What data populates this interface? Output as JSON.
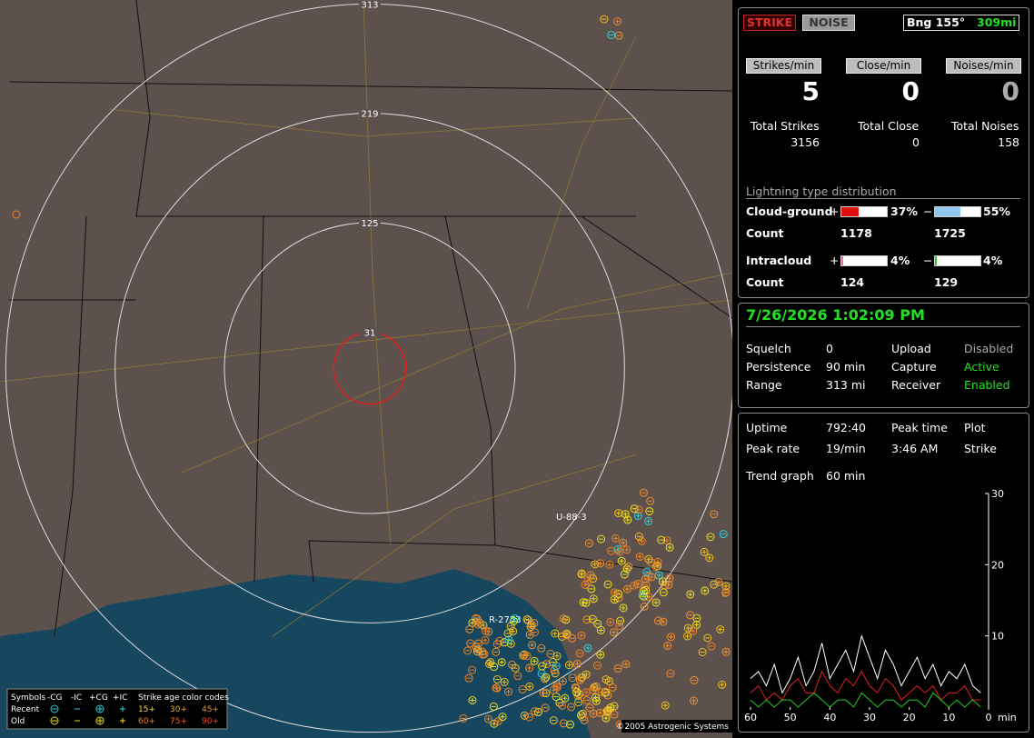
{
  "map": {
    "range_rings": [
      313,
      219,
      125,
      31
    ],
    "airspace_labels": [
      "U-88-3",
      "R-2753"
    ],
    "legend": {
      "symbols": "Symbols",
      "types": [
        "-CG",
        "-IC",
        "+CG",
        "+IC"
      ],
      "age_title": "Strike age color codes",
      "recent": "Recent",
      "old": "Old",
      "recent_ages": [
        "15+",
        "30+",
        "45+"
      ],
      "old_ages": [
        "60+",
        "75+",
        "90+"
      ]
    },
    "copyright": "©2005 Astrogenic Systems"
  },
  "header": {
    "strike": "STRIKE",
    "noise": "NOISE",
    "bearing": "Bng 155°",
    "distance": "309mi"
  },
  "rates": {
    "labels": [
      "Strikes/min",
      "Close/min",
      "Noises/min"
    ],
    "values": [
      5,
      0,
      0
    ]
  },
  "totals": {
    "labels": [
      "Total Strikes",
      "Total Close",
      "Total Noises"
    ],
    "values": [
      3156,
      0,
      158
    ]
  },
  "distribution": {
    "title": "Lightning type distribution",
    "count_label": "Count",
    "plus": "+",
    "minus": "−",
    "cloud_ground": {
      "name": "Cloud-ground",
      "plus": {
        "value": 37,
        "label": "37%"
      },
      "minus": {
        "value": 55,
        "label": "55%"
      },
      "counts": [
        1178,
        1725
      ]
    },
    "intracloud": {
      "name": "Intracloud",
      "plus": {
        "value": 4,
        "label": "4%"
      },
      "minus": {
        "value": 4,
        "label": "4%"
      },
      "counts": [
        124,
        129
      ]
    }
  },
  "status": {
    "datetime": "7/26/2026 1:02:09 PM",
    "rows": [
      [
        "Squelch",
        "0",
        "Upload",
        "Disabled"
      ],
      [
        "Persistence",
        "90 min",
        "Capture",
        "Active"
      ],
      [
        "Range",
        "313 mi",
        "Receiver",
        "Enabled"
      ]
    ]
  },
  "stats": {
    "rows": [
      [
        "Uptime",
        "792:40",
        "Peak time",
        "Plot"
      ],
      [
        "Peak rate",
        "19/min",
        "3:46 AM",
        "Strike"
      ]
    ],
    "trend_label": "Trend graph",
    "trend_value": "60 min"
  },
  "trend_graph": {
    "type": "line",
    "x_label": "min",
    "xlim": [
      60,
      0
    ],
    "ylim": [
      0,
      30
    ],
    "xticks": [
      60,
      50,
      40,
      30,
      20,
      10,
      0
    ],
    "yticks": [
      10,
      20,
      30
    ],
    "x": [
      60,
      58,
      56,
      54,
      52,
      50,
      48,
      46,
      44,
      42,
      40,
      38,
      36,
      34,
      32,
      30,
      28,
      26,
      24,
      22,
      20,
      18,
      16,
      14,
      12,
      10,
      8,
      6,
      4,
      2
    ],
    "series": [
      {
        "color": "#ffffff",
        "values": [
          4,
          5,
          3,
          6,
          2,
          4,
          7,
          3,
          5,
          9,
          4,
          6,
          8,
          5,
          10,
          7,
          4,
          8,
          6,
          3,
          5,
          7,
          4,
          6,
          3,
          5,
          4,
          6,
          3,
          2
        ]
      },
      {
        "color": "#e02020",
        "values": [
          2,
          3,
          1,
          2,
          1,
          3,
          4,
          2,
          2,
          5,
          3,
          2,
          4,
          3,
          5,
          3,
          2,
          4,
          3,
          1,
          2,
          3,
          2,
          3,
          1,
          2,
          2,
          3,
          1,
          1
        ]
      },
      {
        "color": "#20d020",
        "values": [
          1,
          0,
          1,
          0,
          1,
          1,
          0,
          1,
          2,
          1,
          0,
          1,
          1,
          0,
          2,
          1,
          0,
          1,
          1,
          0,
          1,
          1,
          0,
          2,
          1,
          0,
          1,
          0,
          1,
          0
        ]
      }
    ]
  }
}
